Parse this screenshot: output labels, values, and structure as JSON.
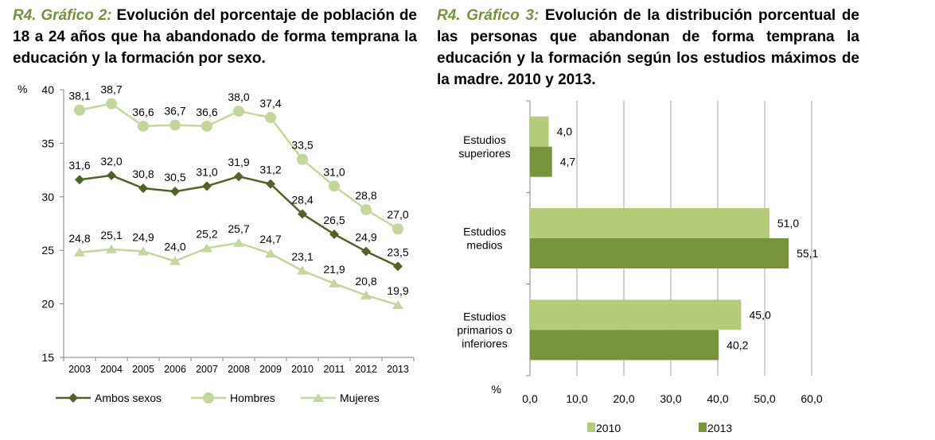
{
  "chart_data": [
    {
      "type": "line",
      "title_tag": "R4. Gráfico 2:",
      "title": "Evolución del porcentaje de población de 18 a 24 años que ha abandonado de forma temprana la educación y la formación por sexo.",
      "ylabel": "%",
      "xlabel": "",
      "ylim": [
        15,
        40
      ],
      "yticks": [
        "15",
        "20",
        "25",
        "30",
        "35",
        "40"
      ],
      "categories": [
        "2003",
        "2004",
        "2005",
        "2006",
        "2007",
        "2008",
        "2009",
        "2010",
        "2011",
        "2012",
        "2013"
      ],
      "series": [
        {
          "name": "Ambos sexos",
          "color": "#4f6228",
          "marker": "diamond",
          "values": [
            31.6,
            32.0,
            30.8,
            30.5,
            31.0,
            31.9,
            31.2,
            28.4,
            26.5,
            24.9,
            23.5
          ],
          "labels": [
            "31,6",
            "32,0",
            "30,8",
            "30,5",
            "31,0",
            "31,9",
            "31,2",
            "28,4",
            "26,5",
            "24,9",
            "23,5"
          ]
        },
        {
          "name": "Hombres",
          "color": "#c3d69b",
          "marker": "circle",
          "values": [
            38.1,
            38.7,
            36.6,
            36.7,
            36.6,
            38.0,
            37.4,
            33.5,
            31.0,
            28.8,
            27.0
          ],
          "labels": [
            "38,1",
            "38,7",
            "36,6",
            "36,7",
            "36,6",
            "38,0",
            "37,4",
            "33,5",
            "31,0",
            "28,8",
            "27,0"
          ]
        },
        {
          "name": "Mujeres",
          "color": "#c3d69b",
          "marker": "triangle",
          "values": [
            24.8,
            25.1,
            24.9,
            24.0,
            25.2,
            25.7,
            24.7,
            23.1,
            21.9,
            20.8,
            19.9
          ],
          "labels": [
            "24,8",
            "25,1",
            "24,9",
            "24,0",
            "25,2",
            "25,7",
            "24,7",
            "23,1",
            "21,9",
            "20,8",
            "19,9"
          ]
        }
      ],
      "grid": false,
      "legend_position": "bottom"
    },
    {
      "type": "bar",
      "orientation": "horizontal",
      "title_tag": "R4. Gráfico 3:",
      "title": "Evolución de la distribución porcentual de las personas que abandonan de forma temprana la educación y la formación según los estudios máximos de la madre. 2010 y 2013.",
      "xlabel": "%",
      "ylabel": "",
      "xlim": [
        0,
        60
      ],
      "xticks": [
        "0,0",
        "10,0",
        "20,0",
        "30,0",
        "40,0",
        "50,0",
        "60,0"
      ],
      "categories": [
        [
          "Estudios",
          "superiores"
        ],
        [
          "Estudios",
          "medios"
        ],
        [
          "Estudios",
          "primarios o",
          "inferiores"
        ]
      ],
      "series": [
        {
          "name": "2010",
          "color": "#b3cc7a",
          "values": [
            4.0,
            51.0,
            45.0
          ],
          "labels": [
            "4,0",
            "51,0",
            "45,0"
          ]
        },
        {
          "name": "2013",
          "color": "#77933c",
          "values": [
            4.7,
            55.1,
            40.2
          ],
          "labels": [
            "4,7",
            "55,1",
            "40,2"
          ]
        }
      ],
      "grid": true,
      "legend_position": "bottom"
    }
  ]
}
